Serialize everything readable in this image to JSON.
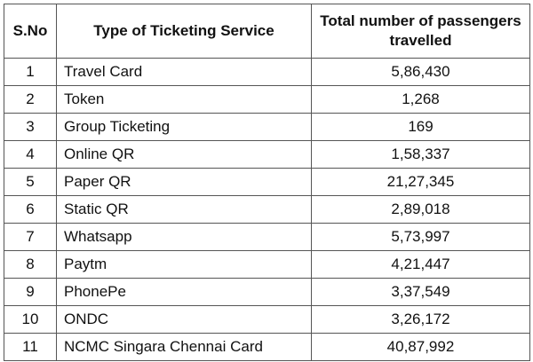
{
  "table": {
    "headers": [
      "S.No",
      "Type of Ticketing Service",
      "Total number of passengers travelled"
    ],
    "rows": [
      {
        "sno": "1",
        "type": "Travel Card",
        "passengers": "5,86,430"
      },
      {
        "sno": "2",
        "type": "Token",
        "passengers": "1,268"
      },
      {
        "sno": "3",
        "type": "Group Ticketing",
        "passengers": "169"
      },
      {
        "sno": "4",
        "type": "Online QR",
        "passengers": "1,58,337"
      },
      {
        "sno": "5",
        "type": "Paper QR",
        "passengers": "21,27,345"
      },
      {
        "sno": "6",
        "type": "Static QR",
        "passengers": "2,89,018"
      },
      {
        "sno": "7",
        "type": "Whatsapp",
        "passengers": "5,73,997"
      },
      {
        "sno": "8",
        "type": "Paytm",
        "passengers": "4,21,447"
      },
      {
        "sno": "9",
        "type": "PhonePe",
        "passengers": "3,37,549"
      },
      {
        "sno": "10",
        "type": "ONDC",
        "passengers": "3,26,172"
      },
      {
        "sno": "11",
        "type": "NCMC Singara Chennai Card",
        "passengers": "40,87,992"
      }
    ]
  }
}
